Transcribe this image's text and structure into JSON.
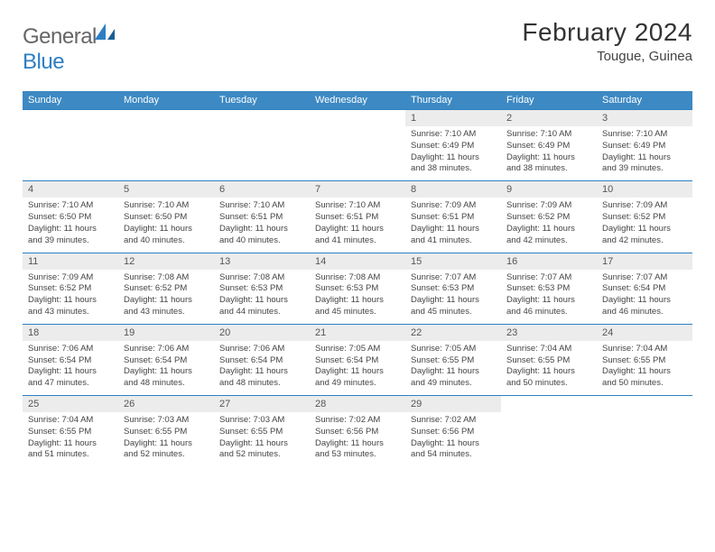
{
  "logo": {
    "brand_a": "General",
    "brand_b": "Blue"
  },
  "title": "February 2024",
  "subtitle": "Tougue, Guinea",
  "colors": {
    "header_bg": "#3d89c3",
    "border": "#2d7fc4",
    "daynum_bg": "#ececec",
    "text": "#444444",
    "title_text": "#333333",
    "logo_grey": "#666666",
    "logo_blue": "#2d7fc4"
  },
  "weekdays": [
    "Sunday",
    "Monday",
    "Tuesday",
    "Wednesday",
    "Thursday",
    "Friday",
    "Saturday"
  ],
  "weeks": [
    [
      null,
      null,
      null,
      null,
      {
        "n": "1",
        "sr": "7:10 AM",
        "ss": "6:49 PM",
        "dl": "11 hours and 38 minutes."
      },
      {
        "n": "2",
        "sr": "7:10 AM",
        "ss": "6:49 PM",
        "dl": "11 hours and 38 minutes."
      },
      {
        "n": "3",
        "sr": "7:10 AM",
        "ss": "6:49 PM",
        "dl": "11 hours and 39 minutes."
      }
    ],
    [
      {
        "n": "4",
        "sr": "7:10 AM",
        "ss": "6:50 PM",
        "dl": "11 hours and 39 minutes."
      },
      {
        "n": "5",
        "sr": "7:10 AM",
        "ss": "6:50 PM",
        "dl": "11 hours and 40 minutes."
      },
      {
        "n": "6",
        "sr": "7:10 AM",
        "ss": "6:51 PM",
        "dl": "11 hours and 40 minutes."
      },
      {
        "n": "7",
        "sr": "7:10 AM",
        "ss": "6:51 PM",
        "dl": "11 hours and 41 minutes."
      },
      {
        "n": "8",
        "sr": "7:09 AM",
        "ss": "6:51 PM",
        "dl": "11 hours and 41 minutes."
      },
      {
        "n": "9",
        "sr": "7:09 AM",
        "ss": "6:52 PM",
        "dl": "11 hours and 42 minutes."
      },
      {
        "n": "10",
        "sr": "7:09 AM",
        "ss": "6:52 PM",
        "dl": "11 hours and 42 minutes."
      }
    ],
    [
      {
        "n": "11",
        "sr": "7:09 AM",
        "ss": "6:52 PM",
        "dl": "11 hours and 43 minutes."
      },
      {
        "n": "12",
        "sr": "7:08 AM",
        "ss": "6:52 PM",
        "dl": "11 hours and 43 minutes."
      },
      {
        "n": "13",
        "sr": "7:08 AM",
        "ss": "6:53 PM",
        "dl": "11 hours and 44 minutes."
      },
      {
        "n": "14",
        "sr": "7:08 AM",
        "ss": "6:53 PM",
        "dl": "11 hours and 45 minutes."
      },
      {
        "n": "15",
        "sr": "7:07 AM",
        "ss": "6:53 PM",
        "dl": "11 hours and 45 minutes."
      },
      {
        "n": "16",
        "sr": "7:07 AM",
        "ss": "6:53 PM",
        "dl": "11 hours and 46 minutes."
      },
      {
        "n": "17",
        "sr": "7:07 AM",
        "ss": "6:54 PM",
        "dl": "11 hours and 46 minutes."
      }
    ],
    [
      {
        "n": "18",
        "sr": "7:06 AM",
        "ss": "6:54 PM",
        "dl": "11 hours and 47 minutes."
      },
      {
        "n": "19",
        "sr": "7:06 AM",
        "ss": "6:54 PM",
        "dl": "11 hours and 48 minutes."
      },
      {
        "n": "20",
        "sr": "7:06 AM",
        "ss": "6:54 PM",
        "dl": "11 hours and 48 minutes."
      },
      {
        "n": "21",
        "sr": "7:05 AM",
        "ss": "6:54 PM",
        "dl": "11 hours and 49 minutes."
      },
      {
        "n": "22",
        "sr": "7:05 AM",
        "ss": "6:55 PM",
        "dl": "11 hours and 49 minutes."
      },
      {
        "n": "23",
        "sr": "7:04 AM",
        "ss": "6:55 PM",
        "dl": "11 hours and 50 minutes."
      },
      {
        "n": "24",
        "sr": "7:04 AM",
        "ss": "6:55 PM",
        "dl": "11 hours and 50 minutes."
      }
    ],
    [
      {
        "n": "25",
        "sr": "7:04 AM",
        "ss": "6:55 PM",
        "dl": "11 hours and 51 minutes."
      },
      {
        "n": "26",
        "sr": "7:03 AM",
        "ss": "6:55 PM",
        "dl": "11 hours and 52 minutes."
      },
      {
        "n": "27",
        "sr": "7:03 AM",
        "ss": "6:55 PM",
        "dl": "11 hours and 52 minutes."
      },
      {
        "n": "28",
        "sr": "7:02 AM",
        "ss": "6:56 PM",
        "dl": "11 hours and 53 minutes."
      },
      {
        "n": "29",
        "sr": "7:02 AM",
        "ss": "6:56 PM",
        "dl": "11 hours and 54 minutes."
      },
      null,
      null
    ]
  ],
  "labels": {
    "sunrise": "Sunrise: ",
    "sunset": "Sunset: ",
    "daylight": "Daylight: "
  }
}
